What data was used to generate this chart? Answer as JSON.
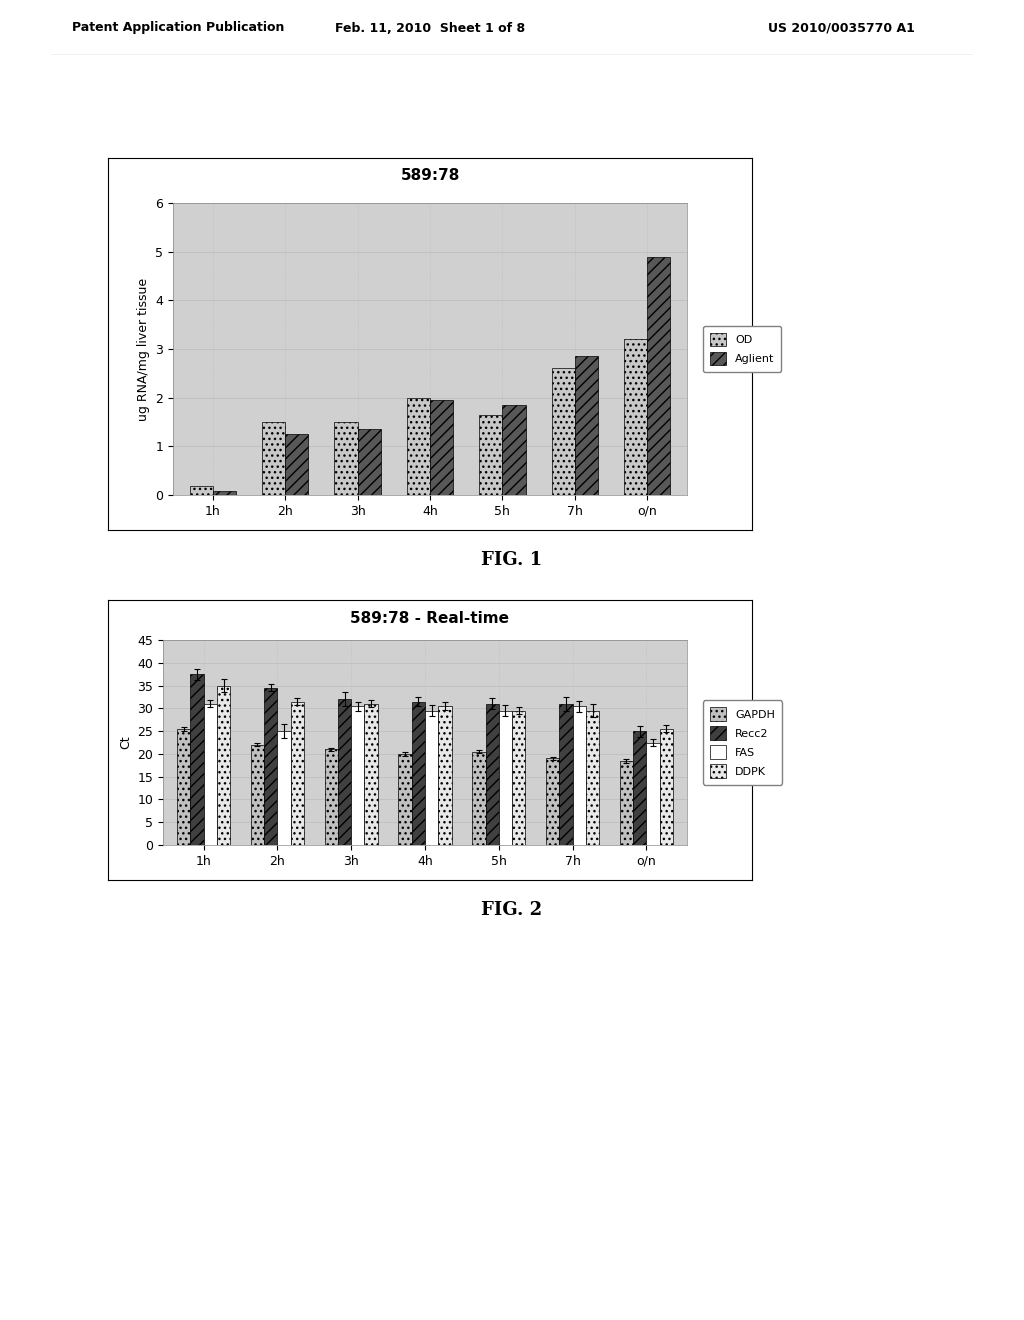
{
  "fig1": {
    "title": "589:78",
    "title_fontsize": 11,
    "title_fontweight": "bold",
    "categories": [
      "1h",
      "2h",
      "3h",
      "4h",
      "5h",
      "7h",
      "o/n"
    ],
    "od_values": [
      0.18,
      1.5,
      1.5,
      2.0,
      1.65,
      2.6,
      3.2
    ],
    "aglient_values": [
      0.08,
      1.25,
      1.35,
      1.95,
      1.85,
      2.85,
      4.9
    ],
    "ylabel": "ug RNA/mg liver tissue",
    "ylabel_fontsize": 9,
    "ylim": [
      0,
      6
    ],
    "yticks": [
      0,
      1,
      2,
      3,
      4,
      5,
      6
    ],
    "legend_labels": [
      "OD",
      "Aglient"
    ],
    "od_color": "#c8c8c8",
    "aglient_color": "#585858",
    "bar_width": 0.32,
    "grid_color": "#bbbbbb",
    "bg_color": "#d0d0d0",
    "tick_fontsize": 9
  },
  "fig2": {
    "title": "589:78 - Real-time",
    "title_fontsize": 11,
    "title_fontweight": "bold",
    "categories": [
      "1h",
      "2h",
      "3h",
      "4h",
      "5h",
      "7h",
      "o/n"
    ],
    "gapdh_values": [
      25.5,
      22.0,
      21.0,
      20.0,
      20.5,
      19.0,
      18.5
    ],
    "recc2_values": [
      37.5,
      34.5,
      32.0,
      31.5,
      31.0,
      31.0,
      25.0
    ],
    "fas_values": [
      31.0,
      25.0,
      30.5,
      29.5,
      29.5,
      30.5,
      22.5
    ],
    "ddpk_values": [
      35.0,
      31.5,
      31.0,
      30.5,
      29.5,
      29.5,
      25.5
    ],
    "gapdh_errors": [
      0.5,
      0.3,
      0.4,
      0.4,
      0.4,
      0.4,
      0.4
    ],
    "recc2_errors": [
      1.2,
      0.8,
      1.5,
      1.0,
      1.2,
      1.5,
      1.2
    ],
    "fas_errors": [
      0.8,
      1.5,
      1.0,
      1.2,
      1.2,
      1.2,
      0.8
    ],
    "ddpk_errors": [
      1.5,
      0.8,
      0.8,
      0.8,
      0.8,
      1.5,
      0.8
    ],
    "ylabel": "Ct",
    "ylabel_fontsize": 9,
    "ylim": [
      0,
      45
    ],
    "yticks": [
      0,
      5,
      10,
      15,
      20,
      25,
      30,
      35,
      40,
      45
    ],
    "legend_labels": [
      "GAPDH",
      "Recc2",
      "FAS",
      "DDPK"
    ],
    "gapdh_color": "#c0c0c0",
    "recc2_color": "#404040",
    "fas_color": "#ffffff",
    "ddpk_color": "#e8e8e8",
    "bar_width": 0.18,
    "grid_color": "#bbbbbb",
    "bg_color": "#d0d0d0",
    "tick_fontsize": 9
  },
  "header_text": "Patent Application Publication",
  "header_date": "Feb. 11, 2010  Sheet 1 of 8",
  "header_patent": "US 2010/0035770 A1",
  "fig1_label": "FIG. 1",
  "fig2_label": "FIG. 2",
  "fig_label_fontsize": 13
}
